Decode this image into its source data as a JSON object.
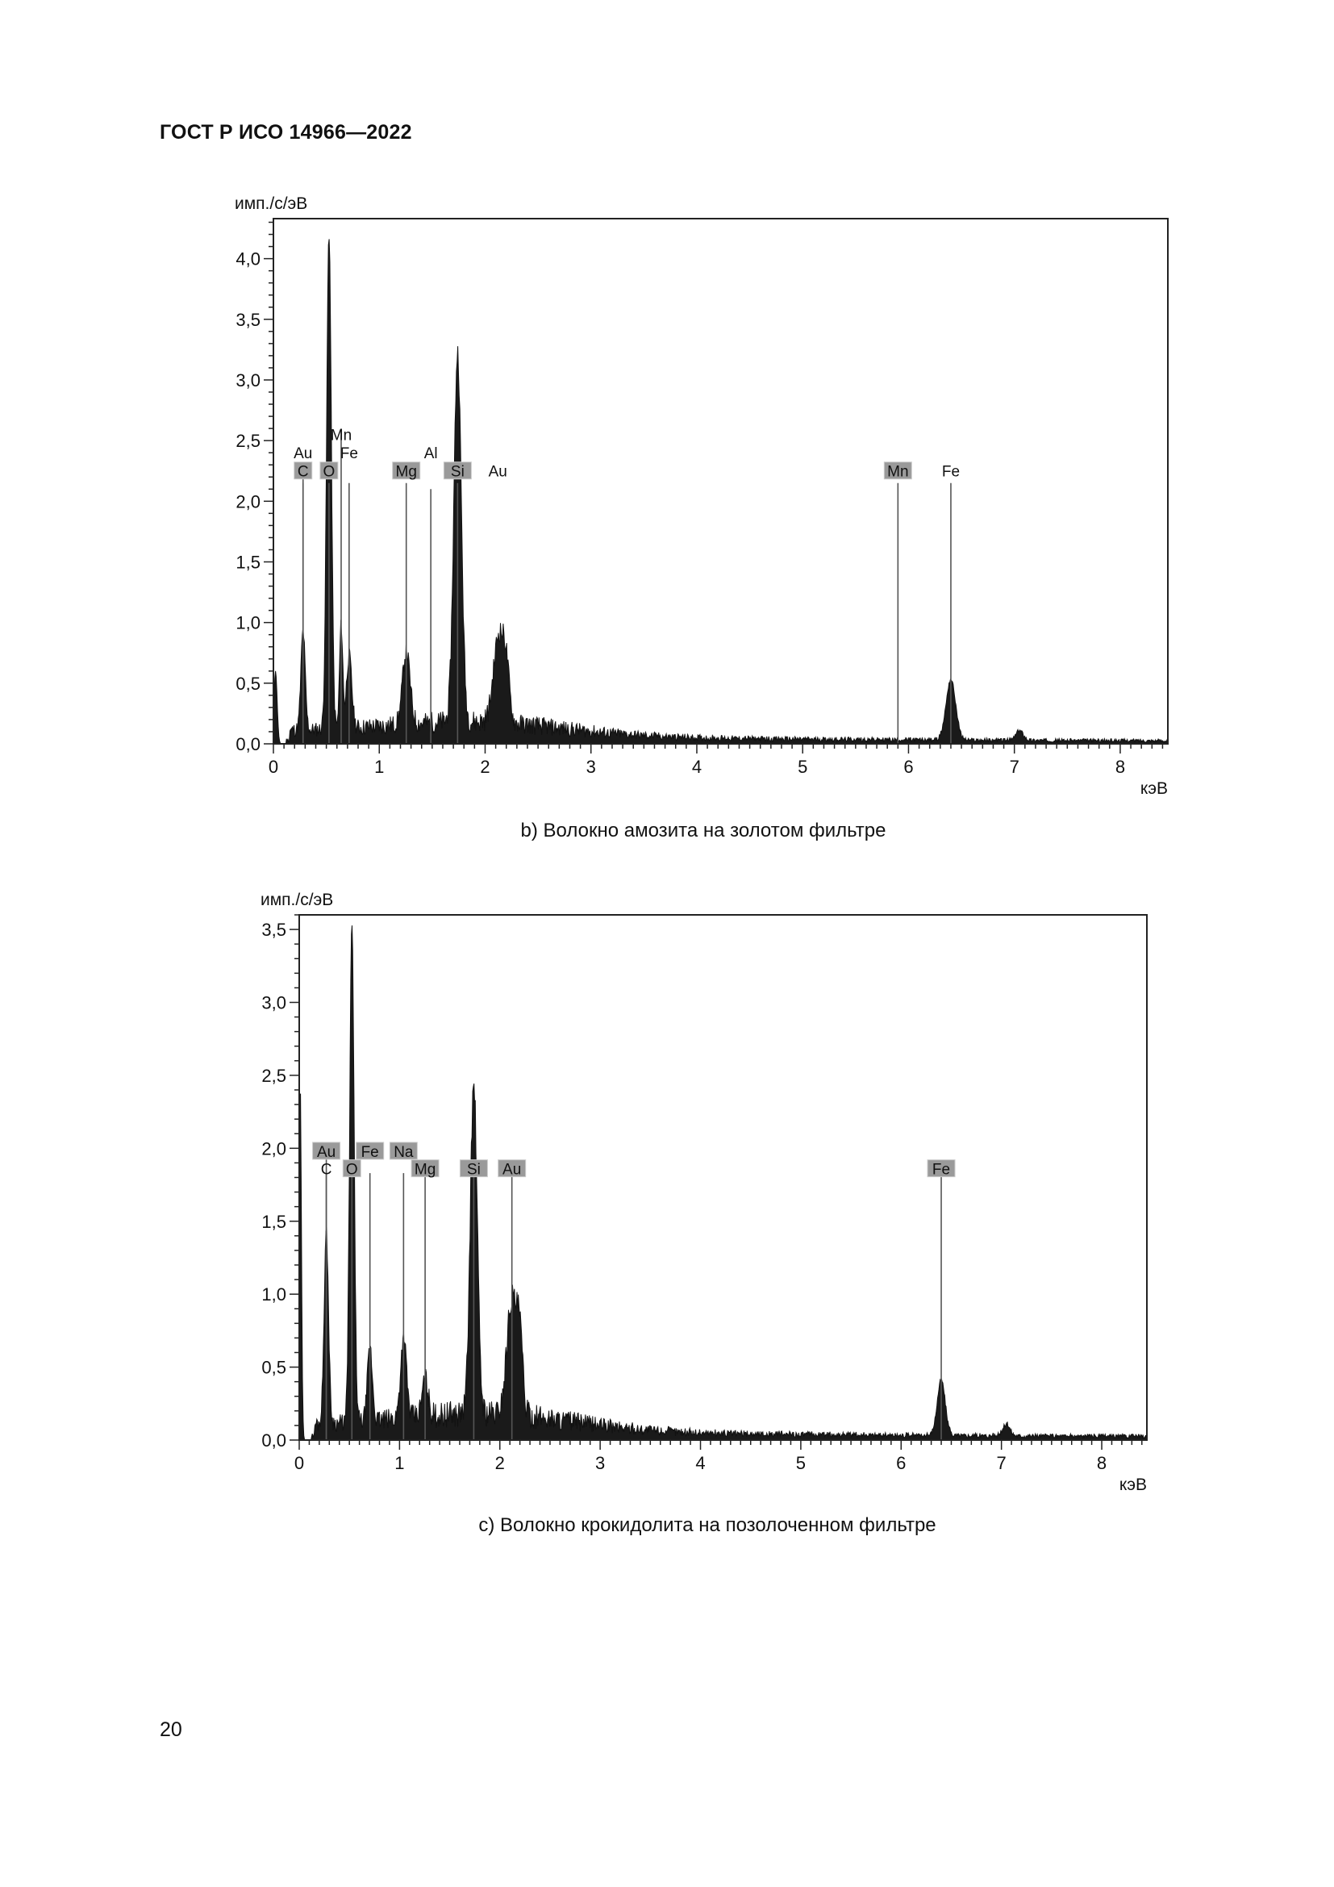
{
  "header": {
    "title": "ГОСТ Р ИСО 14966—2022"
  },
  "page_number": "20",
  "chart_data": [
    {
      "type": "line",
      "caption": "b)  Волокно амозита на золотом фильтре",
      "ylabel": "имп./с/эВ",
      "xlabel": "кэВ",
      "xlim": [
        0,
        8.45
      ],
      "ylim": [
        0,
        4.33
      ],
      "x_ticks": [
        "0",
        "1",
        "2",
        "3",
        "4",
        "5",
        "6",
        "7",
        "8"
      ],
      "y_ticks": [
        "0,0",
        "0,5",
        "1,0",
        "1,5",
        "2,0",
        "2,5",
        "3,0",
        "3,5",
        "4,0"
      ],
      "y_tick_values": [
        0,
        0.5,
        1.0,
        1.5,
        2.0,
        2.5,
        3.0,
        3.5,
        4.0
      ],
      "peaks": [
        {
          "x": 0.02,
          "h": 0.6,
          "w": 0.015
        },
        {
          "x": 0.28,
          "h": 0.82,
          "w": 0.02
        },
        {
          "x": 0.525,
          "h": 4.1,
          "w": 0.022
        },
        {
          "x": 0.64,
          "h": 0.85,
          "w": 0.015
        },
        {
          "x": 0.715,
          "h": 0.6,
          "w": 0.025
        },
        {
          "x": 1.255,
          "h": 0.6,
          "w": 0.035
        },
        {
          "x": 1.74,
          "h": 3.05,
          "w": 0.035
        },
        {
          "x": 2.13,
          "h": 0.72,
          "w": 0.05
        },
        {
          "x": 2.2,
          "h": 0.35,
          "w": 0.03
        },
        {
          "x": 6.4,
          "h": 0.5,
          "w": 0.045
        },
        {
          "x": 7.05,
          "h": 0.08,
          "w": 0.035
        }
      ],
      "element_lines": [
        {
          "label": "Au",
          "x": 0.28,
          "top": 2.2,
          "label_y": 2.4,
          "boxed": false
        },
        {
          "label": "C",
          "x": 0.28,
          "top": 2.15,
          "label_y": 2.25,
          "boxed": true
        },
        {
          "label": "O",
          "x": 0.525,
          "top": 2.15,
          "label_y": 2.25,
          "boxed": true
        },
        {
          "label": "Mn",
          "x": 0.64,
          "top": 2.6,
          "label_y": 2.55,
          "boxed": false
        },
        {
          "label": "Fe",
          "x": 0.715,
          "top": 2.15,
          "label_y": 2.4,
          "boxed": false
        },
        {
          "label": "Mg",
          "x": 1.255,
          "top": 2.15,
          "label_y": 2.25,
          "boxed": true
        },
        {
          "label": "Al",
          "x": 1.487,
          "top": 2.1,
          "label_y": 2.4,
          "boxed": false
        },
        {
          "label": "Si",
          "x": 1.74,
          "top": 2.15,
          "label_y": 2.25,
          "boxed": true
        },
        {
          "label": "Au",
          "x": 2.12,
          "top": 0.0,
          "label_y": 2.25,
          "boxed": false
        },
        {
          "label": "Mn",
          "x": 5.9,
          "top": 2.15,
          "label_y": 2.25,
          "boxed": true
        },
        {
          "label": "Fe",
          "x": 6.4,
          "top": 2.15,
          "label_y": 2.25,
          "boxed": false
        }
      ]
    },
    {
      "type": "line",
      "caption": "c)  Волокно крокидолита на позолоченном фильтре",
      "ylabel": "имп./с/эВ",
      "xlabel": "кэВ",
      "xlim": [
        0,
        8.45
      ],
      "ylim": [
        0,
        3.6
      ],
      "x_ticks": [
        "0",
        "1",
        "2",
        "3",
        "4",
        "5",
        "6",
        "7",
        "8"
      ],
      "y_ticks": [
        "0,0",
        "0,5",
        "1,0",
        "1,5",
        "2,0",
        "2,5",
        "3,0",
        "3,5"
      ],
      "y_tick_values": [
        0,
        0.5,
        1.0,
        1.5,
        2.0,
        2.5,
        3.0,
        3.5
      ],
      "peaks": [
        {
          "x": 0.01,
          "h": 2.45,
          "w": 0.012
        },
        {
          "x": 0.27,
          "h": 1.3,
          "w": 0.022
        },
        {
          "x": 0.525,
          "h": 3.42,
          "w": 0.022
        },
        {
          "x": 0.705,
          "h": 0.5,
          "w": 0.025
        },
        {
          "x": 1.04,
          "h": 0.55,
          "w": 0.03
        },
        {
          "x": 1.255,
          "h": 0.25,
          "w": 0.03
        },
        {
          "x": 1.74,
          "h": 2.25,
          "w": 0.035
        },
        {
          "x": 2.12,
          "h": 0.8,
          "w": 0.05
        },
        {
          "x": 2.2,
          "h": 0.45,
          "w": 0.03
        },
        {
          "x": 6.4,
          "h": 0.38,
          "w": 0.04
        },
        {
          "x": 7.05,
          "h": 0.08,
          "w": 0.035
        }
      ],
      "element_lines": [
        {
          "label": "Au",
          "x": 0.27,
          "top": 1.98,
          "label_y": 1.98,
          "boxed": true
        },
        {
          "label": "C",
          "x": 0.27,
          "top": 1.83,
          "label_y": 1.86,
          "boxed": false
        },
        {
          "label": "O",
          "x": 0.525,
          "top": 1.83,
          "label_y": 1.86,
          "boxed": true
        },
        {
          "label": "Fe",
          "x": 0.705,
          "top": 1.83,
          "label_y": 1.98,
          "boxed": true
        },
        {
          "label": "Na",
          "x": 1.04,
          "top": 1.83,
          "label_y": 1.98,
          "boxed": true
        },
        {
          "label": "Mg",
          "x": 1.255,
          "top": 1.83,
          "label_y": 1.86,
          "boxed": true
        },
        {
          "label": "Si",
          "x": 1.74,
          "top": 1.83,
          "label_y": 1.86,
          "boxed": true
        },
        {
          "label": "Au",
          "x": 2.12,
          "top": 1.83,
          "label_y": 1.86,
          "boxed": true
        },
        {
          "label": "Fe",
          "x": 6.4,
          "top": 1.83,
          "label_y": 1.86,
          "boxed": true
        }
      ]
    }
  ]
}
